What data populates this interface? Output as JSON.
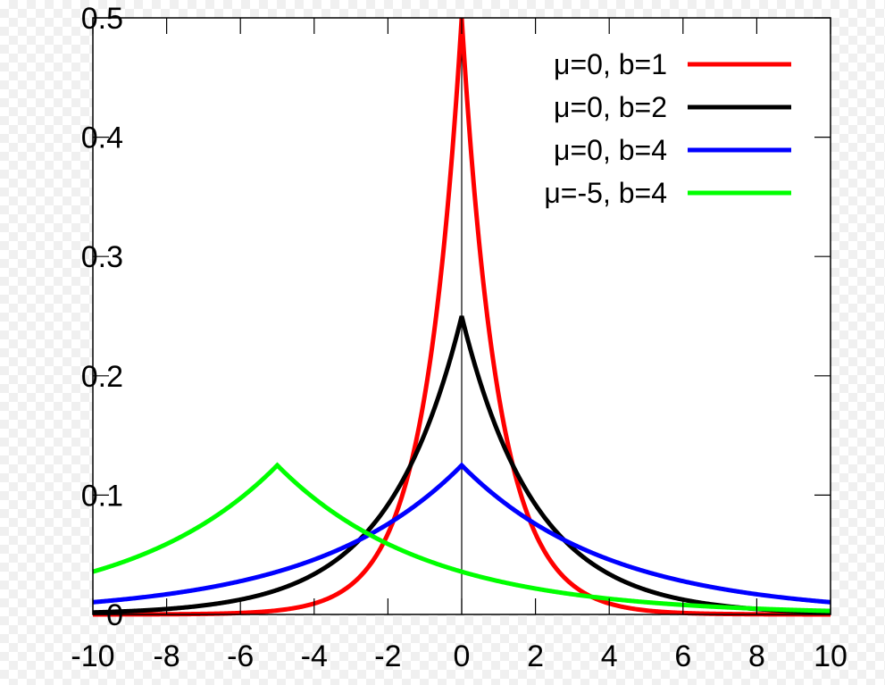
{
  "chart_data": {
    "type": "line",
    "title": "",
    "xlabel": "",
    "ylabel": "",
    "xlim": [
      -10,
      10
    ],
    "ylim": [
      0,
      0.5
    ],
    "x_ticks": [
      -10,
      -8,
      -6,
      -4,
      -2,
      0,
      2,
      4,
      6,
      8,
      10
    ],
    "x_tick_labels": [
      "-10",
      "-8",
      "-6",
      "-4",
      "-2",
      "0",
      "2",
      "4",
      "6",
      "8",
      "10"
    ],
    "y_ticks": [
      0,
      0.1,
      0.2,
      0.3,
      0.4,
      0.5
    ],
    "y_tick_labels": [
      "0",
      "0.1",
      "0.2",
      "0.3",
      "0.4",
      "0.5"
    ],
    "grid": false,
    "zero_line": true,
    "legend_position": "top-right",
    "series": [
      {
        "name": "μ=0, b=1",
        "mu": 0,
        "b": 1,
        "color": "#ff0000",
        "peak": 0.5
      },
      {
        "name": "μ=0, b=2",
        "mu": 0,
        "b": 2,
        "color": "#000000",
        "peak": 0.25
      },
      {
        "name": "μ=0, b=4",
        "mu": 0,
        "b": 4,
        "color": "#0000ff",
        "peak": 0.125
      },
      {
        "name": "μ=-5, b=4",
        "mu": -5,
        "b": 4,
        "color": "#00ff00",
        "peak": 0.125
      }
    ]
  }
}
